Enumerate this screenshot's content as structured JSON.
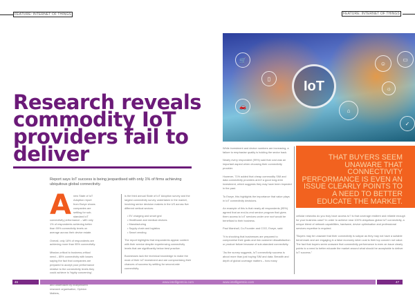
{
  "header": {
    "section_tag_left": "FEATURE: INTERNET OF THINGS",
    "section_tag_right": "FEATURE: INTERNET OF THINGS"
  },
  "article": {
    "headline": "Research reveals commodity IoT providers fail to deliver",
    "standfirst": "Report says IoT success is being jeopardised with only 1% of firms achieving ubiquitous global connectivity.",
    "drop_cap": "A",
    "left_col1": [
      "new State of IoT Adoption report from Eseye shows companies are settling for sub-standard IoT connectivity performance – with only 1% of respondents achieving better than 99% connectivity levels on average across their device estate.",
      "Overall, only 18% of respondents are achieving more than 95% connectivity.",
      "Mission-critical to business-critical need – 85% connectivity with losses saying the fact that companies are prepared to accept poor performance relative to the connectivity levels they could achieve is 'highly concerning'.",
      "The study, commissioned by Eseye, and undertaken by independent research organisation, Opinion Matters,"
    ],
    "left_col2_intro": "is the third annual State of IoT Adoption survey and the largest connectivity survey undertaken in the market, involving senior decision makers in the US across five different vertical sectors:",
    "sectors": [
      "EV charging and smart grid",
      "Healthcare and medical devices",
      "Manufacturing",
      "Supply chain and logistics",
      "Smart vending"
    ],
    "left_col2_rest": [
      "The report highlights that respondents appear content with their service despite experiencing connectivity levels that are significantly below best practice.",
      "Businesses lack the technical knowledge to make the most of their IoT investment and are compromising their chances of success by settling for second-rate connectivity."
    ],
    "right_col1": [
      "While investment and device numbers are increasing, a failure to emphasise quality is holding the sector back.",
      "Nearly every respondent (99%) said that cost was an important aspect when choosing their connectivity provider.",
      "However, 71% added that cheap commodity SIM and data connectivity providers aren't a good long-term investment, which suggests they may have been impeded in the past.",
      "To Eseye, this highlights the importance that value plays in IoT connectivity decisions.",
      "An example of this is that nearly all respondents (95%) agreed that an end-to-end service program that gives them access to IoT services under one roof would be beneficial to their business.",
      "Paul Marshall, Co-Founder and COO, Eseye, said:",
      "\"It is shocking that businesses are prepared to compromise their goals and risk customer dissatisfaction or product failure because of sub-standard connectivity.",
      "\"As the survey suggests, IoT connectivity success is about more than just buying SIM and data. Breadth and depth of global coverage matters – how many"
    ],
    "right_col2": [
      "cellular networks do you truly have access to? Is that coverage resilient and reliable enough for your business case? In order to achieve near 100% ubiquitous global IoT connectivity, a unique blend of network capabilities, hardware, device optimisation and professional services expertise is required.",
      "\"Buyers may be unaware that their connectivity is subpar as they may not have a suitable benchmark and are engaging in a false economy when cost is their top concern not value. The fact that buyers seem unaware that connectivity performance is even an issue clearly points to a need to better educate the market around what should be acceptable to deliver IoT success.\""
    ],
    "pull_quote": "THAT BUYERS SEEM UNAWARE THAT CONNECTIVITY PERFORMANCE IS EVEN AN ISSUE CLEARLY POINTS TO A NEED TO BETTER EDUCATE THE MARKET."
  },
  "image": {
    "label": "IoT"
  },
  "footer": {
    "page_left": "46",
    "page_right": "47",
    "url_left": "www.intelligentcio.com",
    "url_right": "www.intelligentcio.com"
  },
  "colors": {
    "headline": "#6b1a78",
    "accent_orange": "#f2621f",
    "footer_dark": "#7b2a86",
    "footer_light": "#b371bd"
  }
}
